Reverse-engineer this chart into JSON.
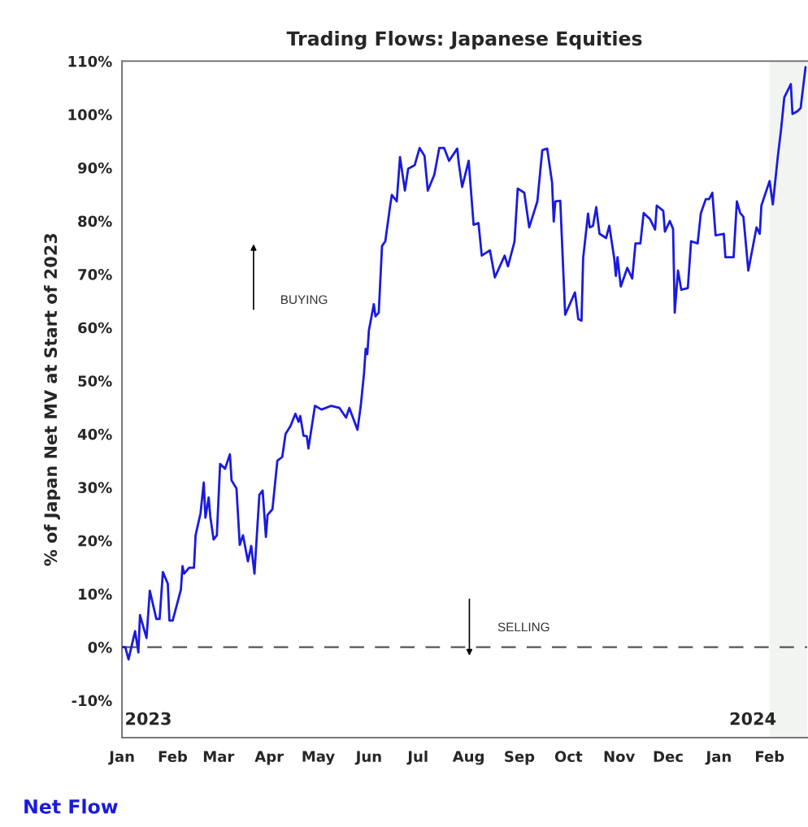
{
  "chart_data": {
    "type": "line",
    "title": "Trading Flows: Japanese Equities",
    "ylabel": "% of Japan Net MV at Start of 2023",
    "annotations": [
      "BUYING",
      "SELLING",
      "2023",
      "2024"
    ],
    "x": [
      "2023-01-01",
      "2023-01-03",
      "2023-01-05",
      "2023-01-09",
      "2023-01-11",
      "2023-01-12",
      "2023-01-16",
      "2023-01-18",
      "2023-01-22",
      "2023-01-24",
      "2023-01-26",
      "2023-01-29",
      "2023-01-30",
      "2023-02-01",
      "2023-02-06",
      "2023-02-07",
      "2023-02-08",
      "2023-02-11",
      "2023-02-14",
      "2023-02-15",
      "2023-02-18",
      "2023-02-20",
      "2023-02-21",
      "2023-02-23",
      "2023-02-24",
      "2023-02-26",
      "2023-02-28",
      "2023-03-02",
      "2023-03-05",
      "2023-03-08",
      "2023-03-09",
      "2023-03-12",
      "2023-03-14",
      "2023-03-16",
      "2023-03-19",
      "2023-03-21",
      "2023-03-23",
      "2023-03-26",
      "2023-03-28",
      "2023-03-30",
      "2023-03-31",
      "2023-04-03",
      "2023-04-06",
      "2023-04-09",
      "2023-04-11",
      "2023-04-14",
      "2023-04-17",
      "2023-04-19",
      "2023-04-20",
      "2023-04-22",
      "2023-04-24",
      "2023-04-25",
      "2023-04-29",
      "2023-05-03",
      "2023-05-09",
      "2023-05-14",
      "2023-05-18",
      "2023-05-20",
      "2023-05-25",
      "2023-05-27",
      "2023-05-29",
      "2023-05-30",
      "2023-05-31",
      "2023-06-01",
      "2023-06-04",
      "2023-06-05",
      "2023-06-07",
      "2023-06-09",
      "2023-06-11",
      "2023-06-14",
      "2023-06-15",
      "2023-06-18",
      "2023-06-20",
      "2023-06-23",
      "2023-06-25",
      "2023-06-29",
      "2023-07-02",
      "2023-07-05",
      "2023-07-07",
      "2023-07-11",
      "2023-07-14",
      "2023-07-17",
      "2023-07-20",
      "2023-07-25",
      "2023-07-26",
      "2023-07-28",
      "2023-08-01",
      "2023-08-04",
      "2023-08-07",
      "2023-08-09",
      "2023-08-14",
      "2023-08-17",
      "2023-08-23",
      "2023-08-25",
      "2023-08-29",
      "2023-08-31",
      "2023-09-04",
      "2023-09-07",
      "2023-09-12",
      "2023-09-15",
      "2023-09-18",
      "2023-09-21",
      "2023-09-22",
      "2023-09-23",
      "2023-09-26",
      "2023-09-29",
      "2023-10-05",
      "2023-10-07",
      "2023-10-09",
      "2023-10-10",
      "2023-10-13",
      "2023-10-14",
      "2023-10-16",
      "2023-10-18",
      "2023-10-20",
      "2023-10-24",
      "2023-10-26",
      "2023-10-29",
      "2023-10-30",
      "2023-10-31",
      "2023-11-02",
      "2023-11-06",
      "2023-11-09",
      "2023-11-11",
      "2023-11-14",
      "2023-11-16",
      "2023-11-20",
      "2023-11-23",
      "2023-11-24",
      "2023-11-28",
      "2023-11-29",
      "2023-12-02",
      "2023-12-04",
      "2023-12-05",
      "2023-12-07",
      "2023-12-09",
      "2023-12-13",
      "2023-12-15",
      "2023-12-19",
      "2023-12-21",
      "2023-12-24",
      "2023-12-26",
      "2023-12-28",
      "2023-12-30",
      "2024-01-04",
      "2024-01-05",
      "2024-01-10",
      "2024-01-12",
      "2024-01-14",
      "2024-01-16",
      "2024-01-19",
      "2024-01-24",
      "2024-01-26",
      "2024-01-27",
      "2024-02-01",
      "2024-02-03",
      "2024-02-06",
      "2024-02-08",
      "2024-02-10",
      "2024-02-14",
      "2024-02-15",
      "2024-02-18",
      "2024-02-20",
      "2024-02-23"
    ],
    "series": [
      {
        "name": "Net Flow",
        "color": "#1a1adf",
        "values": [
          0,
          0,
          -2.3,
          3,
          -1,
          6,
          1.7,
          10.6,
          5.3,
          5.3,
          14.1,
          11.9,
          5,
          5,
          10.8,
          15.2,
          13.8,
          14.9,
          14.9,
          21,
          25.1,
          30.9,
          24.3,
          28.1,
          24.5,
          20.2,
          21,
          34.4,
          33.5,
          36.2,
          31.3,
          29.8,
          19.2,
          21,
          16.1,
          19,
          13.8,
          28.6,
          29.4,
          20.7,
          24.8,
          25.9,
          35,
          35.7,
          40,
          41.5,
          43.8,
          42.3,
          43.4,
          39.7,
          39.6,
          37.3,
          45.3,
          44.6,
          45.3,
          44.9,
          43.1,
          44.9,
          40.8,
          45.3,
          51.4,
          56,
          55,
          59.5,
          64.4,
          62.1,
          62.8,
          75.3,
          76.2,
          82.9,
          84.9,
          83.7,
          92,
          85.7,
          89.8,
          90.5,
          93.7,
          92.2,
          85.7,
          88.7,
          93.7,
          93.7,
          91.3,
          93.6,
          90.7,
          86.4,
          91.3,
          79.3,
          79.6,
          73.5,
          74.5,
          69.4,
          73.5,
          71.5,
          76.1,
          86.1,
          85.3,
          78.8,
          83.7,
          93.3,
          93.6,
          87.2,
          79.9,
          83.7,
          83.8,
          62.4,
          66.6,
          61.6,
          61.3,
          73,
          81.4,
          78.8,
          79.1,
          82.6,
          77.6,
          76.8,
          79.1,
          73,
          69.7,
          73.2,
          67.7,
          71.2,
          69.2,
          75.8,
          75.8,
          81.5,
          80.3,
          78.4,
          82.9,
          81.9,
          78,
          80,
          78.5,
          62.8,
          70.7,
          67.1,
          67.4,
          76.2,
          75.8,
          81.5,
          84.1,
          84.1,
          85.3,
          77.3,
          77.6,
          73.2,
          73.2,
          83.7,
          81.5,
          80.8,
          70.7,
          78.8,
          77.6,
          82.9,
          87.5,
          83.1,
          92,
          97.1,
          103.2,
          105.7,
          100.1,
          100.6,
          101.2,
          108.9
        ]
      }
    ],
    "xlim": [
      "2023-01-01",
      "2024-02-24"
    ],
    "xticks": [
      {
        "value": "2023-01-01",
        "label": "Jan"
      },
      {
        "value": "2023-02-01",
        "label": "Feb"
      },
      {
        "value": "2023-03-01",
        "label": "Mar"
      },
      {
        "value": "2023-04-01",
        "label": "Apr"
      },
      {
        "value": "2023-05-01",
        "label": "May"
      },
      {
        "value": "2023-06-01",
        "label": "Jun"
      },
      {
        "value": "2023-07-01",
        "label": "Jul"
      },
      {
        "value": "2023-08-01",
        "label": "Aug"
      },
      {
        "value": "2023-09-01",
        "label": "Sep"
      },
      {
        "value": "2023-10-01",
        "label": "Oct"
      },
      {
        "value": "2023-11-01",
        "label": "Nov"
      },
      {
        "value": "2023-12-01",
        "label": "Dec"
      },
      {
        "value": "2024-01-01",
        "label": "Jan"
      },
      {
        "value": "2024-02-01",
        "label": "Feb"
      }
    ],
    "ylim": [
      -17,
      110
    ],
    "yticks": [
      {
        "value": -10,
        "label": "-10%"
      },
      {
        "value": 0,
        "label": "0%"
      },
      {
        "value": 10,
        "label": "10%"
      },
      {
        "value": 20,
        "label": "20%"
      },
      {
        "value": 30,
        "label": "30%"
      },
      {
        "value": 40,
        "label": "40%"
      },
      {
        "value": 50,
        "label": "50%"
      },
      {
        "value": 60,
        "label": "60%"
      },
      {
        "value": 70,
        "label": "70%"
      },
      {
        "value": 80,
        "label": "80%"
      },
      {
        "value": 90,
        "label": "90%"
      },
      {
        "value": 100,
        "label": "100%"
      },
      {
        "value": 110,
        "label": "110%"
      }
    ],
    "ref_lines": [
      {
        "axis": "y",
        "value": 0,
        "color": "#555555",
        "line_style": "dashed"
      }
    ],
    "bands": [
      {
        "axis": "x",
        "from": "2024-02-01",
        "to": "2024-02-24",
        "color": "#f2f4f2"
      }
    ],
    "grid": false,
    "legend": "bottom left",
    "marker": "none",
    "line_style": "solid"
  }
}
